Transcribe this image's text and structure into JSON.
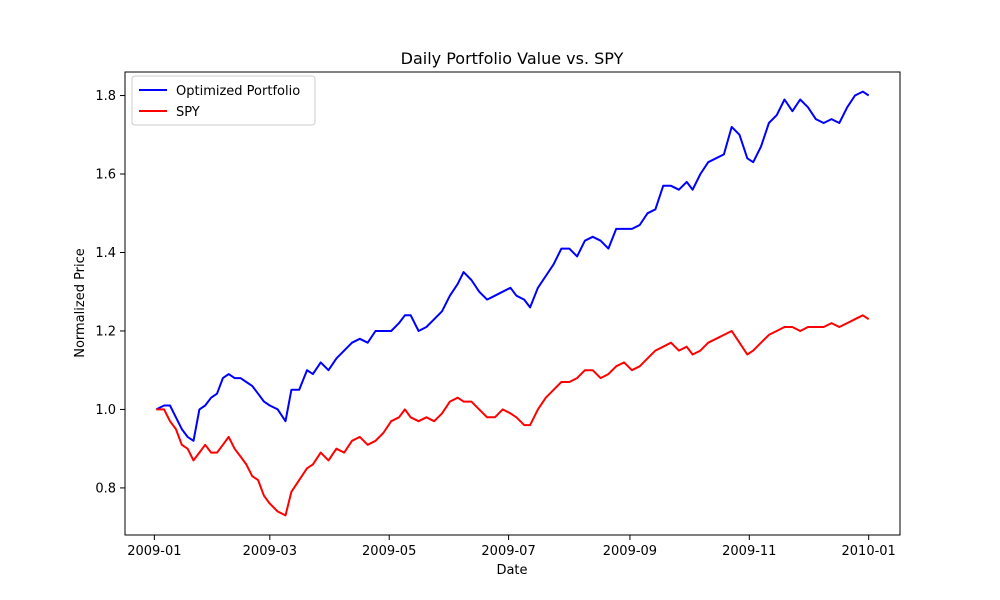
{
  "chart_data": {
    "type": "line",
    "title": "Daily Portfolio Value vs. SPY",
    "xlabel": "Date",
    "ylabel": "Normalized Price",
    "xlim": [
      "2008-12-17",
      "2010-01-17"
    ],
    "ylim": [
      0.68,
      1.86
    ],
    "x_ticks": [
      "2009-01",
      "2009-03",
      "2009-05",
      "2009-07",
      "2009-09",
      "2009-11",
      "2010-01"
    ],
    "y_ticks": [
      0.8,
      1.0,
      1.2,
      1.4,
      1.6,
      1.8
    ],
    "grid": false,
    "legend_position": "top-left",
    "series": [
      {
        "name": "Optimized Portfolio",
        "color": "#0000ff",
        "points": [
          [
            "2009-01-02",
            1.0
          ],
          [
            "2009-01-06",
            1.01
          ],
          [
            "2009-01-09",
            1.01
          ],
          [
            "2009-01-12",
            0.98
          ],
          [
            "2009-01-15",
            0.95
          ],
          [
            "2009-01-18",
            0.93
          ],
          [
            "2009-01-21",
            0.92
          ],
          [
            "2009-01-24",
            1.0
          ],
          [
            "2009-01-27",
            1.01
          ],
          [
            "2009-01-30",
            1.03
          ],
          [
            "2009-02-02",
            1.04
          ],
          [
            "2009-02-05",
            1.08
          ],
          [
            "2009-02-08",
            1.09
          ],
          [
            "2009-02-11",
            1.08
          ],
          [
            "2009-02-14",
            1.08
          ],
          [
            "2009-02-17",
            1.07
          ],
          [
            "2009-02-20",
            1.06
          ],
          [
            "2009-02-23",
            1.04
          ],
          [
            "2009-02-26",
            1.02
          ],
          [
            "2009-03-01",
            1.01
          ],
          [
            "2009-03-05",
            1.0
          ],
          [
            "2009-03-09",
            0.97
          ],
          [
            "2009-03-12",
            1.05
          ],
          [
            "2009-03-16",
            1.05
          ],
          [
            "2009-03-20",
            1.1
          ],
          [
            "2009-03-23",
            1.09
          ],
          [
            "2009-03-27",
            1.12
          ],
          [
            "2009-03-31",
            1.1
          ],
          [
            "2009-04-04",
            1.13
          ],
          [
            "2009-04-08",
            1.15
          ],
          [
            "2009-04-12",
            1.17
          ],
          [
            "2009-04-16",
            1.18
          ],
          [
            "2009-04-20",
            1.17
          ],
          [
            "2009-04-24",
            1.2
          ],
          [
            "2009-04-28",
            1.2
          ],
          [
            "2009-05-02",
            1.2
          ],
          [
            "2009-05-06",
            1.22
          ],
          [
            "2009-05-09",
            1.24
          ],
          [
            "2009-05-12",
            1.24
          ],
          [
            "2009-05-16",
            1.2
          ],
          [
            "2009-05-20",
            1.21
          ],
          [
            "2009-05-24",
            1.23
          ],
          [
            "2009-05-28",
            1.25
          ],
          [
            "2009-06-01",
            1.29
          ],
          [
            "2009-06-05",
            1.32
          ],
          [
            "2009-06-08",
            1.35
          ],
          [
            "2009-06-12",
            1.33
          ],
          [
            "2009-06-16",
            1.3
          ],
          [
            "2009-06-20",
            1.28
          ],
          [
            "2009-06-24",
            1.29
          ],
          [
            "2009-06-28",
            1.3
          ],
          [
            "2009-07-02",
            1.31
          ],
          [
            "2009-07-05",
            1.29
          ],
          [
            "2009-07-09",
            1.28
          ],
          [
            "2009-07-12",
            1.26
          ],
          [
            "2009-07-16",
            1.31
          ],
          [
            "2009-07-20",
            1.34
          ],
          [
            "2009-07-24",
            1.37
          ],
          [
            "2009-07-28",
            1.41
          ],
          [
            "2009-08-01",
            1.41
          ],
          [
            "2009-08-05",
            1.39
          ],
          [
            "2009-08-09",
            1.43
          ],
          [
            "2009-08-13",
            1.44
          ],
          [
            "2009-08-17",
            1.43
          ],
          [
            "2009-08-21",
            1.41
          ],
          [
            "2009-08-25",
            1.46
          ],
          [
            "2009-08-29",
            1.46
          ],
          [
            "2009-09-02",
            1.46
          ],
          [
            "2009-09-06",
            1.47
          ],
          [
            "2009-09-10",
            1.5
          ],
          [
            "2009-09-14",
            1.51
          ],
          [
            "2009-09-18",
            1.57
          ],
          [
            "2009-09-22",
            1.57
          ],
          [
            "2009-09-26",
            1.56
          ],
          [
            "2009-09-30",
            1.58
          ],
          [
            "2009-10-03",
            1.56
          ],
          [
            "2009-10-07",
            1.6
          ],
          [
            "2009-10-11",
            1.63
          ],
          [
            "2009-10-15",
            1.64
          ],
          [
            "2009-10-19",
            1.65
          ],
          [
            "2009-10-23",
            1.72
          ],
          [
            "2009-10-27",
            1.7
          ],
          [
            "2009-10-31",
            1.64
          ],
          [
            "2009-11-03",
            1.63
          ],
          [
            "2009-11-07",
            1.67
          ],
          [
            "2009-11-11",
            1.73
          ],
          [
            "2009-11-15",
            1.75
          ],
          [
            "2009-11-19",
            1.79
          ],
          [
            "2009-11-23",
            1.76
          ],
          [
            "2009-11-27",
            1.79
          ],
          [
            "2009-12-01",
            1.77
          ],
          [
            "2009-12-05",
            1.74
          ],
          [
            "2009-12-09",
            1.73
          ],
          [
            "2009-12-13",
            1.74
          ],
          [
            "2009-12-17",
            1.73
          ],
          [
            "2009-12-21",
            1.77
          ],
          [
            "2009-12-25",
            1.8
          ],
          [
            "2009-12-29",
            1.81
          ],
          [
            "2010-01-01",
            1.8
          ]
        ]
      },
      {
        "name": "SPY",
        "color": "#ff0000",
        "points": [
          [
            "2009-01-02",
            1.0
          ],
          [
            "2009-01-06",
            1.0
          ],
          [
            "2009-01-09",
            0.97
          ],
          [
            "2009-01-12",
            0.95
          ],
          [
            "2009-01-15",
            0.91
          ],
          [
            "2009-01-18",
            0.9
          ],
          [
            "2009-01-21",
            0.87
          ],
          [
            "2009-01-24",
            0.89
          ],
          [
            "2009-01-27",
            0.91
          ],
          [
            "2009-01-30",
            0.89
          ],
          [
            "2009-02-02",
            0.89
          ],
          [
            "2009-02-05",
            0.91
          ],
          [
            "2009-02-08",
            0.93
          ],
          [
            "2009-02-11",
            0.9
          ],
          [
            "2009-02-14",
            0.88
          ],
          [
            "2009-02-17",
            0.86
          ],
          [
            "2009-02-20",
            0.83
          ],
          [
            "2009-02-23",
            0.82
          ],
          [
            "2009-02-26",
            0.78
          ],
          [
            "2009-03-01",
            0.76
          ],
          [
            "2009-03-05",
            0.74
          ],
          [
            "2009-03-09",
            0.73
          ],
          [
            "2009-03-12",
            0.79
          ],
          [
            "2009-03-16",
            0.82
          ],
          [
            "2009-03-20",
            0.85
          ],
          [
            "2009-03-23",
            0.86
          ],
          [
            "2009-03-27",
            0.89
          ],
          [
            "2009-03-31",
            0.87
          ],
          [
            "2009-04-04",
            0.9
          ],
          [
            "2009-04-08",
            0.89
          ],
          [
            "2009-04-12",
            0.92
          ],
          [
            "2009-04-16",
            0.93
          ],
          [
            "2009-04-20",
            0.91
          ],
          [
            "2009-04-24",
            0.92
          ],
          [
            "2009-04-28",
            0.94
          ],
          [
            "2009-05-02",
            0.97
          ],
          [
            "2009-05-06",
            0.98
          ],
          [
            "2009-05-09",
            1.0
          ],
          [
            "2009-05-12",
            0.98
          ],
          [
            "2009-05-16",
            0.97
          ],
          [
            "2009-05-20",
            0.98
          ],
          [
            "2009-05-24",
            0.97
          ],
          [
            "2009-05-28",
            0.99
          ],
          [
            "2009-06-01",
            1.02
          ],
          [
            "2009-06-05",
            1.03
          ],
          [
            "2009-06-08",
            1.02
          ],
          [
            "2009-06-12",
            1.02
          ],
          [
            "2009-06-16",
            1.0
          ],
          [
            "2009-06-20",
            0.98
          ],
          [
            "2009-06-24",
            0.98
          ],
          [
            "2009-06-28",
            1.0
          ],
          [
            "2009-07-02",
            0.99
          ],
          [
            "2009-07-05",
            0.98
          ],
          [
            "2009-07-09",
            0.96
          ],
          [
            "2009-07-12",
            0.96
          ],
          [
            "2009-07-16",
            1.0
          ],
          [
            "2009-07-20",
            1.03
          ],
          [
            "2009-07-24",
            1.05
          ],
          [
            "2009-07-28",
            1.07
          ],
          [
            "2009-08-01",
            1.07
          ],
          [
            "2009-08-05",
            1.08
          ],
          [
            "2009-08-09",
            1.1
          ],
          [
            "2009-08-13",
            1.1
          ],
          [
            "2009-08-17",
            1.08
          ],
          [
            "2009-08-21",
            1.09
          ],
          [
            "2009-08-25",
            1.11
          ],
          [
            "2009-08-29",
            1.12
          ],
          [
            "2009-09-02",
            1.1
          ],
          [
            "2009-09-06",
            1.11
          ],
          [
            "2009-09-10",
            1.13
          ],
          [
            "2009-09-14",
            1.15
          ],
          [
            "2009-09-18",
            1.16
          ],
          [
            "2009-09-22",
            1.17
          ],
          [
            "2009-09-26",
            1.15
          ],
          [
            "2009-09-30",
            1.16
          ],
          [
            "2009-10-03",
            1.14
          ],
          [
            "2009-10-07",
            1.15
          ],
          [
            "2009-10-11",
            1.17
          ],
          [
            "2009-10-15",
            1.18
          ],
          [
            "2009-10-19",
            1.19
          ],
          [
            "2009-10-23",
            1.2
          ],
          [
            "2009-10-27",
            1.17
          ],
          [
            "2009-10-31",
            1.14
          ],
          [
            "2009-11-03",
            1.15
          ],
          [
            "2009-11-07",
            1.17
          ],
          [
            "2009-11-11",
            1.19
          ],
          [
            "2009-11-15",
            1.2
          ],
          [
            "2009-11-19",
            1.21
          ],
          [
            "2009-11-23",
            1.21
          ],
          [
            "2009-11-27",
            1.2
          ],
          [
            "2009-12-01",
            1.21
          ],
          [
            "2009-12-05",
            1.21
          ],
          [
            "2009-12-09",
            1.21
          ],
          [
            "2009-12-13",
            1.22
          ],
          [
            "2009-12-17",
            1.21
          ],
          [
            "2009-12-21",
            1.22
          ],
          [
            "2009-12-25",
            1.23
          ],
          [
            "2009-12-29",
            1.24
          ],
          [
            "2010-01-01",
            1.23
          ]
        ]
      }
    ]
  }
}
